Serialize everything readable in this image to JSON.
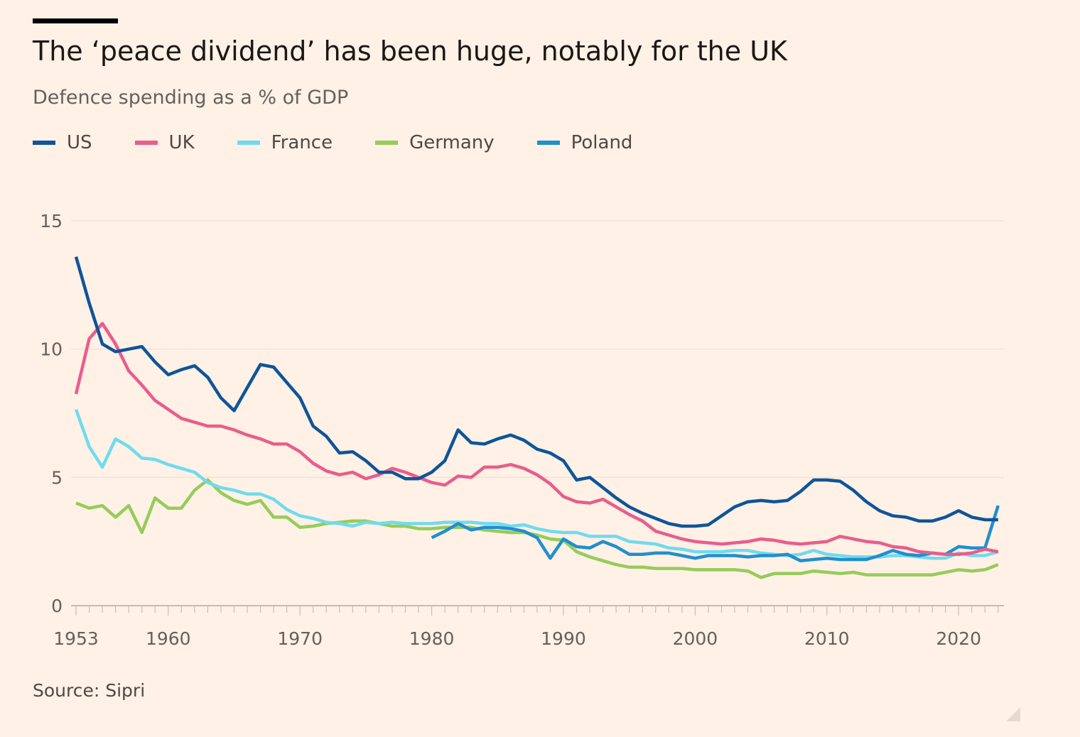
{
  "title": "The ‘peace dividend’ has been huge, notably for the UK",
  "subtitle": "Defence spending as a % of GDP",
  "source": "Source: Sipri",
  "chart_data": {
    "type": "line",
    "title": "The ‘peace dividend’ has been huge, notably for the UK",
    "subtitle": "Defence spending as a % of GDP",
    "xlabel": "",
    "ylabel": "",
    "xlim": [
      1953,
      2023
    ],
    "ylim": [
      0,
      15
    ],
    "yticks": [
      "0",
      "5",
      "10",
      "15"
    ],
    "xticks": [
      "1953",
      "1960",
      "1970",
      "1980",
      "1990",
      "2000",
      "2010",
      "2020"
    ],
    "grid": true,
    "legend_position": "top-left",
    "series": [
      {
        "name": "US",
        "color": "#0f5499",
        "start": 1953,
        "values": [
          13.6,
          11.8,
          10.2,
          9.9,
          10.0,
          10.1,
          9.5,
          9.0,
          9.2,
          9.35,
          8.9,
          8.1,
          7.6,
          8.5,
          9.4,
          9.3,
          8.7,
          8.1,
          7.0,
          6.6,
          5.95,
          6.0,
          5.65,
          5.2,
          5.2,
          4.95,
          4.95,
          5.2,
          5.65,
          6.85,
          6.35,
          6.3,
          6.5,
          6.65,
          6.45,
          6.1,
          5.95,
          5.65,
          4.9,
          5.0,
          4.6,
          4.2,
          3.85,
          3.6,
          3.4,
          3.2,
          3.1,
          3.1,
          3.15,
          3.5,
          3.85,
          4.05,
          4.1,
          4.05,
          4.1,
          4.45,
          4.9,
          4.9,
          4.85,
          4.5,
          4.05,
          3.7,
          3.5,
          3.45,
          3.3,
          3.3,
          3.45,
          3.7,
          3.45,
          3.35,
          3.35
        ]
      },
      {
        "name": "UK",
        "color": "#e95d8c",
        "start": 1953,
        "values": [
          8.25,
          10.4,
          11.0,
          10.2,
          9.15,
          8.6,
          8.0,
          7.65,
          7.3,
          7.15,
          7.0,
          7.0,
          6.85,
          6.65,
          6.5,
          6.3,
          6.3,
          6.0,
          5.55,
          5.25,
          5.1,
          5.2,
          4.95,
          5.1,
          5.35,
          5.2,
          5.0,
          4.8,
          4.7,
          5.05,
          5.0,
          5.4,
          5.4,
          5.5,
          5.35,
          5.1,
          4.75,
          4.25,
          4.05,
          4.0,
          4.15,
          3.85,
          3.55,
          3.3,
          2.9,
          2.75,
          2.6,
          2.5,
          2.45,
          2.4,
          2.45,
          2.5,
          2.6,
          2.55,
          2.45,
          2.4,
          2.45,
          2.5,
          2.7,
          2.6,
          2.5,
          2.45,
          2.3,
          2.25,
          2.1,
          2.05,
          2.0,
          2.0,
          2.05,
          2.2,
          2.1
        ]
      },
      {
        "name": "France",
        "color": "#70dbee",
        "start": 1953,
        "values": [
          7.65,
          6.2,
          5.4,
          6.5,
          6.2,
          5.75,
          5.7,
          5.5,
          5.35,
          5.2,
          4.8,
          4.6,
          4.5,
          4.35,
          4.35,
          4.15,
          3.75,
          3.5,
          3.4,
          3.25,
          3.2,
          3.1,
          3.25,
          3.2,
          3.25,
          3.2,
          3.2,
          3.2,
          3.25,
          3.25,
          3.25,
          3.2,
          3.2,
          3.1,
          3.15,
          3.0,
          2.9,
          2.85,
          2.85,
          2.7,
          2.7,
          2.7,
          2.5,
          2.45,
          2.4,
          2.25,
          2.2,
          2.1,
          2.1,
          2.1,
          2.15,
          2.15,
          2.05,
          2.0,
          1.95,
          2.0,
          2.15,
          2.0,
          1.95,
          1.9,
          1.9,
          1.9,
          1.95,
          1.95,
          1.9,
          1.85,
          1.85,
          2.05,
          1.95,
          1.95,
          2.1
        ]
      },
      {
        "name": "Germany",
        "color": "#96cc5b",
        "start": 1953,
        "values": [
          4.0,
          3.8,
          3.9,
          3.45,
          3.9,
          2.85,
          4.2,
          3.8,
          3.8,
          4.5,
          4.9,
          4.4,
          4.1,
          3.95,
          4.1,
          3.45,
          3.45,
          3.05,
          3.1,
          3.2,
          3.25,
          3.3,
          3.3,
          3.2,
          3.1,
          3.1,
          3.0,
          3.0,
          3.05,
          3.05,
          3.05,
          2.95,
          2.9,
          2.85,
          2.85,
          2.75,
          2.6,
          2.55,
          2.1,
          1.9,
          1.75,
          1.6,
          1.5,
          1.5,
          1.45,
          1.45,
          1.45,
          1.4,
          1.4,
          1.4,
          1.4,
          1.35,
          1.1,
          1.25,
          1.25,
          1.25,
          1.35,
          1.3,
          1.25,
          1.3,
          1.2,
          1.2,
          1.2,
          1.2,
          1.2,
          1.2,
          1.3,
          1.4,
          1.35,
          1.4,
          1.6
        ]
      },
      {
        "name": "Poland",
        "color": "#208fce",
        "start": 1980,
        "values": [
          2.65,
          2.9,
          3.2,
          2.95,
          3.05,
          3.05,
          3.0,
          2.9,
          2.65,
          1.85,
          2.6,
          2.3,
          2.25,
          2.5,
          2.3,
          2.0,
          2.0,
          2.05,
          2.05,
          1.95,
          1.85,
          1.95,
          1.95,
          1.95,
          1.9,
          1.95,
          1.95,
          2.0,
          1.75,
          1.8,
          1.85,
          1.8,
          1.8,
          1.8,
          1.95,
          2.15,
          2.0,
          1.95,
          2.05,
          2.0,
          2.3,
          2.25,
          2.25,
          3.9
        ]
      }
    ]
  }
}
